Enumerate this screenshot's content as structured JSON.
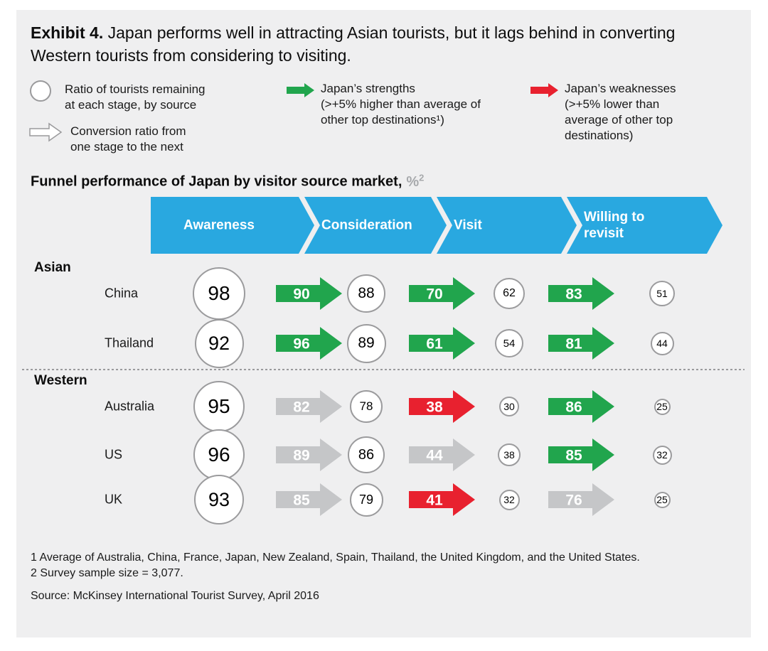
{
  "exhibit": {
    "label": "Exhibit 4.",
    "title": " Japan performs well in attracting Asian tourists, but it lags behind in converting Western tourists from considering to visiting."
  },
  "legend": {
    "stage_ratio": {
      "lines": [
        "Ratio of tourists remaining",
        "at each stage, by source"
      ]
    },
    "conversion_ratio": {
      "lines": [
        "Conversion ratio from",
        "one stage to the next"
      ]
    },
    "strengths": {
      "lines": [
        "Japan’s strengths",
        "(>+5% higher than average of",
        "other top destinations¹)"
      ]
    },
    "weaknesses": {
      "lines": [
        "Japan’s weaknesses",
        "(>+5% lower than",
        "average of other top",
        "destinations)"
      ]
    }
  },
  "chart_title": {
    "text": "Funnel performance of Japan by visitor source market,",
    "unit": "%",
    "unit_sup": "2"
  },
  "chart_data": {
    "type": "funnel",
    "stages": [
      "Awareness",
      "Consideration",
      "Visit",
      "Willing to revisit"
    ],
    "stage_bar_color": "#29a8e0",
    "type_colors": {
      "strength": "#21a54d",
      "weakness": "#e8212f",
      "neutral": "#c5c6c8"
    },
    "sections": [
      {
        "name": "Asian",
        "rows": [
          {
            "market": "China",
            "stage_values": [
              98,
              88,
              62,
              51
            ],
            "conversions": [
              {
                "value": 90,
                "type": "strength"
              },
              {
                "value": 70,
                "type": "strength"
              },
              {
                "value": 83,
                "type": "strength"
              }
            ]
          },
          {
            "market": "Thailand",
            "stage_values": [
              92,
              89,
              54,
              44
            ],
            "conversions": [
              {
                "value": 96,
                "type": "strength"
              },
              {
                "value": 61,
                "type": "strength"
              },
              {
                "value": 81,
                "type": "strength"
              }
            ]
          }
        ]
      },
      {
        "name": "Western",
        "rows": [
          {
            "market": "Australia",
            "stage_values": [
              95,
              78,
              30,
              25
            ],
            "conversions": [
              {
                "value": 82,
                "type": "neutral"
              },
              {
                "value": 38,
                "type": "weakness"
              },
              {
                "value": 86,
                "type": "strength"
              }
            ]
          },
          {
            "market": "US",
            "stage_values": [
              96,
              86,
              38,
              32
            ],
            "conversions": [
              {
                "value": 89,
                "type": "neutral"
              },
              {
                "value": 44,
                "type": "neutral"
              },
              {
                "value": 85,
                "type": "strength"
              }
            ]
          },
          {
            "market": "UK",
            "stage_values": [
              93,
              79,
              32,
              25
            ],
            "conversions": [
              {
                "value": 85,
                "type": "neutral"
              },
              {
                "value": 41,
                "type": "weakness"
              },
              {
                "value": 76,
                "type": "neutral"
              }
            ]
          }
        ]
      }
    ]
  },
  "footnotes": [
    "1 Average of Australia, China, France, Japan, New Zealand, Spain, Thailand, the United Kingdom, and the United States.",
    "2 Survey sample size = 3,077."
  ],
  "source": "Source: McKinsey International Tourist Survey, April 2016"
}
